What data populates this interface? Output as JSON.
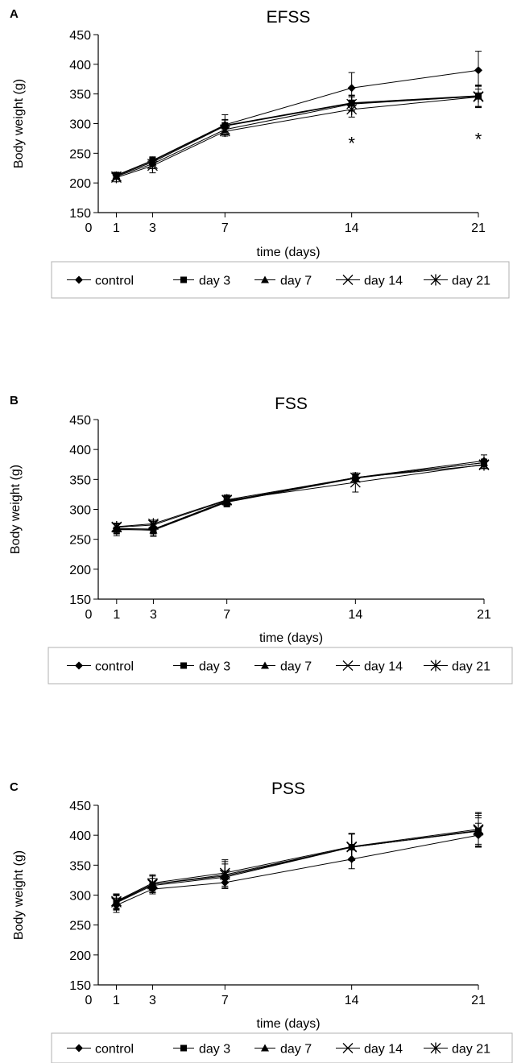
{
  "chart_data": [
    {
      "panel_letter": "A",
      "type": "line",
      "title": "EFSS",
      "xlabel": "time (days)",
      "ylabel": "Body weight (g)",
      "xlim": [
        0,
        21
      ],
      "ylim": [
        150,
        450
      ],
      "xticks": [
        0,
        1,
        3,
        7,
        14,
        21
      ],
      "yticks": [
        150,
        200,
        250,
        300,
        350,
        400,
        450
      ],
      "grid": false,
      "legend_position": "bottom",
      "series": [
        {
          "name": "control",
          "marker": "diamond",
          "x": [
            1,
            3,
            7,
            14,
            21
          ],
          "y": [
            213,
            238,
            298,
            360,
            390
          ],
          "err": [
            5,
            6,
            17,
            26,
            32
          ]
        },
        {
          "name": "day 3",
          "marker": "square",
          "x": [
            1,
            3,
            7,
            14,
            21
          ],
          "y": [
            213,
            237,
            297,
            335,
            347
          ],
          "err": [
            5,
            6,
            10,
            13,
            18
          ]
        },
        {
          "name": "day 7",
          "marker": "triangle",
          "x": [
            1,
            3,
            7,
            14,
            21
          ],
          "y": [
            212,
            235,
            296,
            334,
            346
          ],
          "err": [
            5,
            6,
            10,
            13,
            18
          ]
        },
        {
          "name": "day 14",
          "marker": "x",
          "x": [
            1,
            3,
            7,
            14,
            21
          ],
          "y": [
            211,
            232,
            290,
            333,
            346
          ],
          "err": [
            5,
            8,
            8,
            12,
            18
          ]
        },
        {
          "name": "day 21",
          "marker": "star",
          "x": [
            1,
            3,
            7,
            14,
            21
          ],
          "y": [
            209,
            229,
            287,
            324,
            345
          ],
          "err": [
            7,
            12,
            8,
            13,
            18
          ]
        }
      ],
      "annotations": [
        {
          "text": "*",
          "x": 14,
          "y": 270
        },
        {
          "text": "*",
          "x": 21,
          "y": 277
        }
      ]
    },
    {
      "panel_letter": "B",
      "type": "line",
      "title": "FSS",
      "xlabel": "time (days)",
      "ylabel": "Body weight (g)",
      "xlim": [
        0,
        21
      ],
      "ylim": [
        150,
        450
      ],
      "xticks": [
        0,
        1,
        3,
        7,
        14,
        21
      ],
      "yticks": [
        150,
        200,
        250,
        300,
        350,
        400,
        450
      ],
      "grid": false,
      "legend_position": "bottom",
      "series": [
        {
          "name": "control",
          "marker": "diamond",
          "x": [
            1,
            3,
            7,
            14,
            21
          ],
          "y": [
            268,
            267,
            314,
            353,
            381
          ],
          "err": [
            8,
            8,
            8,
            6,
            10
          ]
        },
        {
          "name": "day 3",
          "marker": "square",
          "x": [
            1,
            3,
            7,
            14,
            21
          ],
          "y": [
            266,
            266,
            313,
            353,
            378
          ],
          "err": [
            10,
            10,
            8,
            6,
            6
          ]
        },
        {
          "name": "day 7",
          "marker": "triangle",
          "x": [
            1,
            3,
            7,
            14,
            21
          ],
          "y": [
            267,
            265,
            312,
            352,
            378
          ],
          "err": [
            8,
            10,
            8,
            6,
            6
          ]
        },
        {
          "name": "day 14",
          "marker": "x",
          "x": [
            1,
            3,
            7,
            14,
            21
          ],
          "y": [
            270,
            274,
            315,
            345,
            375
          ],
          "err": [
            6,
            6,
            8,
            16,
            6
          ]
        },
        {
          "name": "day 21",
          "marker": "star",
          "x": [
            1,
            3,
            7,
            14,
            21
          ],
          "y": [
            271,
            276,
            316,
            353,
            374
          ],
          "err": [
            6,
            6,
            8,
            6,
            6
          ]
        }
      ]
    },
    {
      "panel_letter": "C",
      "type": "line",
      "title": "PSS",
      "xlabel": "time (days)",
      "ylabel": "Body weight (g)",
      "xlim": [
        0,
        21
      ],
      "ylim": [
        150,
        450
      ],
      "xticks": [
        0,
        1,
        3,
        7,
        14,
        21
      ],
      "yticks": [
        150,
        200,
        250,
        300,
        350,
        400,
        450
      ],
      "grid": false,
      "legend_position": "bottom",
      "series": [
        {
          "name": "control",
          "marker": "diamond",
          "x": [
            1,
            3,
            7,
            14,
            21
          ],
          "y": [
            283,
            310,
            321,
            360,
            400
          ],
          "err": [
            12,
            8,
            10,
            16,
            20
          ]
        },
        {
          "name": "day 3",
          "marker": "square",
          "x": [
            1,
            3,
            7,
            14,
            21
          ],
          "y": [
            287,
            316,
            330,
            380,
            407
          ],
          "err": [
            12,
            12,
            10,
            22,
            22
          ]
        },
        {
          "name": "day 7",
          "marker": "triangle",
          "x": [
            1,
            3,
            7,
            14,
            21
          ],
          "y": [
            289,
            318,
            332,
            380,
            407
          ],
          "err": [
            12,
            14,
            20,
            22,
            26
          ]
        },
        {
          "name": "day 14",
          "marker": "x",
          "x": [
            1,
            3,
            7,
            14,
            21
          ],
          "y": [
            288,
            318,
            334,
            380,
            408
          ],
          "err": [
            12,
            14,
            22,
            22,
            28
          ]
        },
        {
          "name": "day 21",
          "marker": "star",
          "x": [
            1,
            3,
            7,
            14,
            21
          ],
          "y": [
            290,
            320,
            337,
            381,
            410
          ],
          "err": [
            12,
            14,
            22,
            22,
            28
          ]
        }
      ]
    }
  ]
}
